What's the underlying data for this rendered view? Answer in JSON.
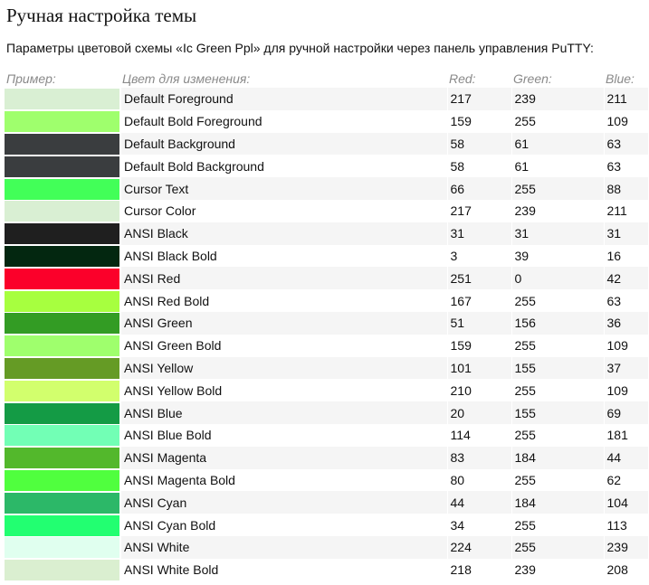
{
  "title": "Ручная настройка темы",
  "intro": "Параметры цветовой схемы «Ic Green Ppl» для ручной настройки через панель управления PuTTY:",
  "columns": {
    "sample": "Пример:",
    "name": "Цвет для изменения:",
    "red": "Red:",
    "green": "Green:",
    "blue": "Blue:"
  },
  "rows": [
    {
      "name": "Default Foreground",
      "red": "217",
      "green": "239",
      "blue": "211",
      "color": "#d9efd3"
    },
    {
      "name": "Default Bold Foreground",
      "red": "159",
      "green": "255",
      "blue": "109",
      "color": "#9fff6d"
    },
    {
      "name": "Default Background",
      "red": "58",
      "green": "61",
      "blue": "63",
      "color": "#3a3d3f"
    },
    {
      "name": "Default Bold Background",
      "red": "58",
      "green": "61",
      "blue": "63",
      "color": "#3a3d3f"
    },
    {
      "name": "Cursor Text",
      "red": "66",
      "green": "255",
      "blue": "88",
      "color": "#42ff58"
    },
    {
      "name": "Cursor Color",
      "red": "217",
      "green": "239",
      "blue": "211",
      "color": "#d9efd3"
    },
    {
      "name": "ANSI Black",
      "red": "31",
      "green": "31",
      "blue": "31",
      "color": "#1f1f1f"
    },
    {
      "name": "ANSI Black Bold",
      "red": "3",
      "green": "39",
      "blue": "16",
      "color": "#032710"
    },
    {
      "name": "ANSI Red",
      "red": "251",
      "green": "0",
      "blue": "42",
      "color": "#fb002a"
    },
    {
      "name": "ANSI Red Bold",
      "red": "167",
      "green": "255",
      "blue": "63",
      "color": "#a7ff3f"
    },
    {
      "name": "ANSI Green",
      "red": "51",
      "green": "156",
      "blue": "36",
      "color": "#339c24"
    },
    {
      "name": "ANSI Green Bold",
      "red": "159",
      "green": "255",
      "blue": "109",
      "color": "#9fff6d"
    },
    {
      "name": "ANSI Yellow",
      "red": "101",
      "green": "155",
      "blue": "37",
      "color": "#659b25"
    },
    {
      "name": "ANSI Yellow Bold",
      "red": "210",
      "green": "255",
      "blue": "109",
      "color": "#d2ff6d"
    },
    {
      "name": "ANSI Blue",
      "red": "20",
      "green": "155",
      "blue": "69",
      "color": "#149b45"
    },
    {
      "name": "ANSI Blue Bold",
      "red": "114",
      "green": "255",
      "blue": "181",
      "color": "#72ffb5"
    },
    {
      "name": "ANSI Magenta",
      "red": "83",
      "green": "184",
      "blue": "44",
      "color": "#53b82c"
    },
    {
      "name": "ANSI Magenta Bold",
      "red": "80",
      "green": "255",
      "blue": "62",
      "color": "#50ff3e"
    },
    {
      "name": "ANSI Cyan",
      "red": "44",
      "green": "184",
      "blue": "104",
      "color": "#2cb868"
    },
    {
      "name": "ANSI Cyan Bold",
      "red": "34",
      "green": "255",
      "blue": "113",
      "color": "#22ff71"
    },
    {
      "name": "ANSI White",
      "red": "224",
      "green": "255",
      "blue": "239",
      "color": "#e0ffef"
    },
    {
      "name": "ANSI White Bold",
      "red": "218",
      "green": "239",
      "blue": "208",
      "color": "#daefd0"
    }
  ]
}
